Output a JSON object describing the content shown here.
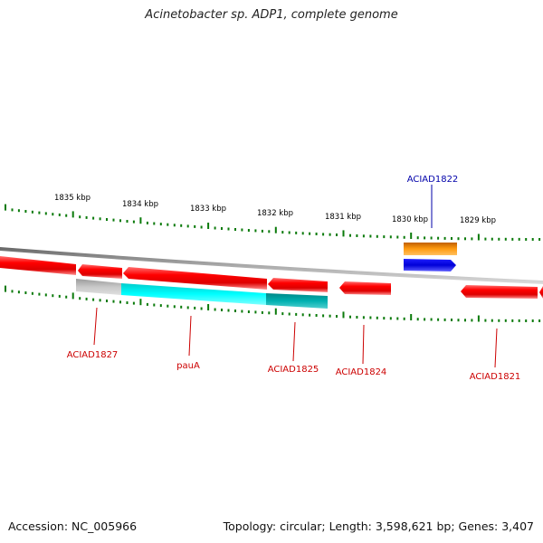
{
  "title": "Acinetobacter sp. ADP1, complete genome",
  "footer": {
    "accession": "Accession: NC_005966",
    "summary": "Topology: circular; Length: 3,598,621 bp; Genes: 3,407"
  },
  "scale_labels": [
    "1835 kbp",
    "1834 kbp",
    "1833 kbp",
    "1832 kbp",
    "1831 kbp",
    "1830 kbp",
    "1829 kbp"
  ],
  "gene_labels": {
    "ACIAD1822": "ACIAD1822",
    "ACIAD1827": "ACIAD1827",
    "pauA": "pauA",
    "ACIAD1825": "ACIAD1825",
    "ACIAD1824": "ACIAD1824",
    "ACIAD1821": "ACIAD1821"
  },
  "colors": {
    "gene_red": "#ee0000",
    "label_red": "#cc0000",
    "label_blue": "#0000aa",
    "gray_feature": "#b4b4b4",
    "cyan_feature": "#00e5e5",
    "teal_feature": "#00a8a8",
    "orange_feature": "#f08c00",
    "blue_feature": "#0000e0",
    "tick_green": "#0a7a0a",
    "backbone": "#888888"
  }
}
